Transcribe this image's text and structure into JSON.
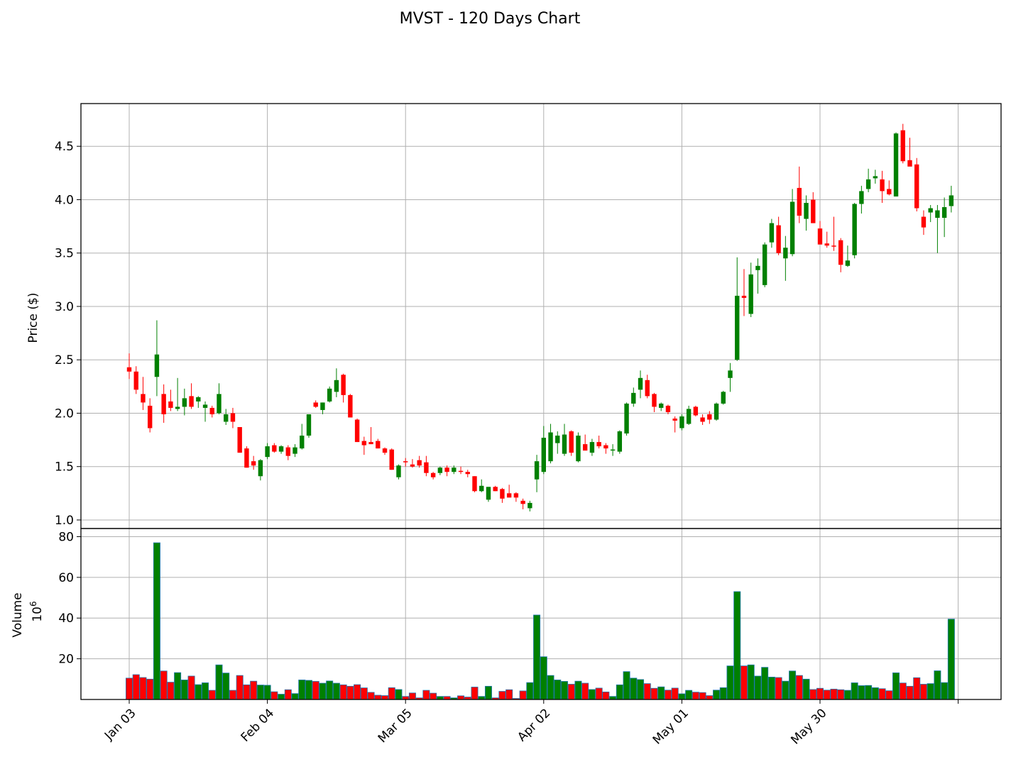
{
  "chart_data": {
    "type": "candlestick",
    "title": "MVST - 120 Days Chart",
    "ylabel_price": "Price ($)",
    "ylabel_volume": "Volume",
    "volume_multiplier": "10",
    "volume_exponent": "6",
    "price_ylim": [
      0.92,
      4.9
    ],
    "price_yticks": [
      "1.0",
      "1.5",
      "2.0",
      "2.5",
      "3.0",
      "3.5",
      "4.0",
      "4.5"
    ],
    "volume_ylim": [
      0,
      84
    ],
    "volume_yticks": [
      "20",
      "40",
      "60",
      "80"
    ],
    "xtick_labels": [
      {
        "label": "Jan 03",
        "index": 0
      },
      {
        "label": "Feb 04",
        "index": 20
      },
      {
        "label": "Mar 05",
        "index": 40
      },
      {
        "label": "Apr 02",
        "index": 60
      },
      {
        "label": "May 01",
        "index": 80
      },
      {
        "label": "May 30",
        "index": 100
      },
      {
        "label": "",
        "index": 120
      }
    ],
    "colors": {
      "up": "#008000",
      "down": "#ff0000",
      "edge": "#1f77b4",
      "grid": "#b0b0b0"
    },
    "candles": [
      [
        2.43,
        2.56,
        2.32,
        2.39,
        10.5
      ],
      [
        2.39,
        2.44,
        2.18,
        2.22,
        12.2
      ],
      [
        2.18,
        2.34,
        2.03,
        2.1,
        10.8
      ],
      [
        2.07,
        2.14,
        1.82,
        1.86,
        10
      ],
      [
        2.34,
        2.87,
        2.16,
        2.55,
        77
      ],
      [
        2.18,
        2.27,
        1.91,
        1.99,
        14
      ],
      [
        2.11,
        2.22,
        2.02,
        2.05,
        8.5
      ],
      [
        2.04,
        2.33,
        2.02,
        2.06,
        13.2
      ],
      [
        2.06,
        2.23,
        1.98,
        2.14,
        9.6
      ],
      [
        2.16,
        2.28,
        2.04,
        2.06,
        11.5
      ],
      [
        2.11,
        2.16,
        2.05,
        2.15,
        7.3
      ],
      [
        2.05,
        2.11,
        1.92,
        2.08,
        8.2
      ],
      [
        2.05,
        2.07,
        1.96,
        1.99,
        4.5
      ],
      [
        2,
        2.28,
        1.99,
        2.18,
        17
      ],
      [
        1.92,
        2.04,
        1.89,
        1.99,
        13
      ],
      [
        2,
        2.05,
        1.86,
        1.92,
        4.5
      ],
      [
        1.87,
        1.87,
        1.63,
        1.63,
        11.8
      ],
      [
        1.67,
        1.69,
        1.49,
        1.49,
        7.2
      ],
      [
        1.55,
        1.6,
        1.47,
        1.51,
        9
      ],
      [
        1.41,
        1.57,
        1.37,
        1.56,
        7.1
      ],
      [
        1.59,
        1.72,
        1.57,
        1.69,
        7
      ],
      [
        1.7,
        1.72,
        1.63,
        1.64,
        3.8
      ],
      [
        1.64,
        1.7,
        1.62,
        1.69,
        2.6
      ],
      [
        1.68,
        1.7,
        1.56,
        1.6,
        4.8
      ],
      [
        1.62,
        1.71,
        1.59,
        1.68,
        2.9
      ],
      [
        1.67,
        1.9,
        1.66,
        1.79,
        9.6
      ],
      [
        1.79,
        1.99,
        1.77,
        1.99,
        9.4
      ],
      [
        2.1,
        2.12,
        2.05,
        2.06,
        8.9
      ],
      [
        2.03,
        2.1,
        1.99,
        2.1,
        8
      ],
      [
        2.11,
        2.25,
        2.1,
        2.23,
        9.1
      ],
      [
        2.2,
        2.42,
        2.15,
        2.31,
        8
      ],
      [
        2.36,
        2.37,
        2.1,
        2.17,
        7.2
      ],
      [
        2.17,
        2.18,
        1.96,
        1.96,
        6.5
      ],
      [
        1.94,
        1.95,
        1.73,
        1.73,
        7.3
      ],
      [
        1.74,
        1.78,
        1.61,
        1.7,
        5.7
      ],
      [
        1.73,
        1.87,
        1.71,
        1.71,
        3.5
      ],
      [
        1.74,
        1.76,
        1.67,
        1.67,
        2.1
      ],
      [
        1.67,
        1.68,
        1.61,
        1.63,
        1.9
      ],
      [
        1.66,
        1.67,
        1.47,
        1.47,
        5.8
      ],
      [
        1.4,
        1.52,
        1.38,
        1.51,
        4.9
      ],
      [
        1.55,
        1.58,
        1.5,
        1.54,
        1.5
      ],
      [
        1.52,
        1.57,
        1.49,
        1.5,
        3.2
      ],
      [
        1.56,
        1.6,
        1.49,
        1.51,
        0.8
      ],
      [
        1.54,
        1.6,
        1.41,
        1.44,
        4.5
      ],
      [
        1.44,
        1.45,
        1.38,
        1.4,
        3.1
      ],
      [
        1.44,
        1.5,
        1.42,
        1.49,
        1.5
      ],
      [
        1.49,
        1.51,
        1.41,
        1.45,
        1.5
      ],
      [
        1.45,
        1.51,
        1.43,
        1.49,
        0.8
      ],
      [
        1.46,
        1.5,
        1.43,
        1.45,
        1.8
      ],
      [
        1.45,
        1.47,
        1.4,
        1.43,
        1.2
      ],
      [
        1.41,
        1.41,
        1.26,
        1.27,
        6.1
      ],
      [
        1.27,
        1.38,
        1.26,
        1.32,
        1.5
      ],
      [
        1.19,
        1.31,
        1.17,
        1.31,
        6.5
      ],
      [
        1.31,
        1.32,
        1.27,
        1.27,
        0.8
      ],
      [
        1.29,
        1.3,
        1.16,
        1.2,
        4
      ],
      [
        1.25,
        1.33,
        1.21,
        1.21,
        4.8
      ],
      [
        1.25,
        1.26,
        1.17,
        1.21,
        0.5
      ],
      [
        1.18,
        1.2,
        1.1,
        1.15,
        4.2
      ],
      [
        1.11,
        1.18,
        1.08,
        1.16,
        8.3
      ],
      [
        1.38,
        1.61,
        1.26,
        1.55,
        41.5
      ],
      [
        1.45,
        1.88,
        1.43,
        1.77,
        21
      ],
      [
        1.55,
        1.9,
        1.53,
        1.82,
        11.8
      ],
      [
        1.72,
        1.83,
        1.62,
        1.79,
        9.6
      ],
      [
        1.62,
        1.9,
        1.6,
        1.8,
        8.9
      ],
      [
        1.83,
        1.84,
        1.6,
        1.63,
        7.5
      ],
      [
        1.55,
        1.82,
        1.54,
        1.79,
        9
      ],
      [
        1.71,
        1.8,
        1.65,
        1.65,
        8
      ],
      [
        1.63,
        1.76,
        1.6,
        1.73,
        4.9
      ],
      [
        1.73,
        1.79,
        1.67,
        1.69,
        5.6
      ],
      [
        1.7,
        1.72,
        1.62,
        1.67,
        3.7
      ],
      [
        1.66,
        1.71,
        1.6,
        1.66,
        1.5
      ],
      [
        1.64,
        1.84,
        1.62,
        1.83,
        7.2
      ],
      [
        1.81,
        2.1,
        1.79,
        2.09,
        13.7
      ],
      [
        2.09,
        2.24,
        2.06,
        2.19,
        10.5
      ],
      [
        2.22,
        2.4,
        2.14,
        2.33,
        9.8
      ],
      [
        2.31,
        2.36,
        2.14,
        2.16,
        7.8
      ],
      [
        2.18,
        2.19,
        2.01,
        2.06,
        5.5
      ],
      [
        2.05,
        2.1,
        2.02,
        2.09,
        6.2
      ],
      [
        2.07,
        2.08,
        1.99,
        2.01,
        4.6
      ],
      [
        1.95,
        1.97,
        1.82,
        1.93,
        5.6
      ],
      [
        1.86,
        1.99,
        1.84,
        1.97,
        2.8
      ],
      [
        1.9,
        2.07,
        1.89,
        2.04,
        4.5
      ],
      [
        2.06,
        2.07,
        1.97,
        1.98,
        3.6
      ],
      [
        1.96,
        1.99,
        1.89,
        1.92,
        3.4
      ],
      [
        1.99,
        2.02,
        1.9,
        1.94,
        1.9
      ],
      [
        1.94,
        2.1,
        1.93,
        2.09,
        4.6
      ],
      [
        2.09,
        2.21,
        2.08,
        2.2,
        5.8
      ],
      [
        2.33,
        2.47,
        2.2,
        2.4,
        16.5
      ],
      [
        2.5,
        3.46,
        2.49,
        3.1,
        53
      ],
      [
        3.1,
        3.35,
        2.91,
        3.08,
        16.5
      ],
      [
        2.93,
        3.41,
        2.9,
        3.3,
        17
      ],
      [
        3.34,
        3.45,
        3.12,
        3.38,
        11.5
      ],
      [
        3.2,
        3.6,
        3.18,
        3.58,
        15.8
      ],
      [
        3.6,
        3.82,
        3.55,
        3.78,
        11
      ],
      [
        3.76,
        3.84,
        3.48,
        3.5,
        10.8
      ],
      [
        3.45,
        3.66,
        3.24,
        3.55,
        9
      ],
      [
        3.49,
        4.1,
        3.47,
        3.98,
        14
      ],
      [
        4.11,
        4.31,
        3.78,
        3.85,
        11.8
      ],
      [
        3.82,
        4.04,
        3.71,
        3.97,
        10
      ],
      [
        4,
        4.07,
        3.78,
        3.78,
        4.9
      ],
      [
        3.73,
        3.8,
        3.58,
        3.58,
        5.5
      ],
      [
        3.59,
        3.7,
        3.55,
        3.57,
        4.6
      ],
      [
        3.57,
        3.84,
        3.52,
        3.56,
        5.1
      ],
      [
        3.62,
        3.64,
        3.32,
        3.39,
        4.8
      ],
      [
        3.38,
        3.57,
        3.37,
        3.43,
        4.5
      ],
      [
        3.48,
        3.97,
        3.45,
        3.96,
        8.2
      ],
      [
        3.96,
        4.13,
        3.87,
        4.08,
        6.8
      ],
      [
        4.1,
        4.29,
        4.07,
        4.19,
        6.9
      ],
      [
        4.2,
        4.28,
        4.15,
        4.22,
        5.8
      ],
      [
        4.19,
        4.27,
        3.97,
        4.08,
        5.3
      ],
      [
        4.1,
        4.18,
        4.04,
        4.05,
        4.3
      ],
      [
        4.03,
        4.63,
        4.03,
        4.62,
        13.1
      ],
      [
        4.65,
        4.71,
        4.34,
        4.36,
        8.1
      ],
      [
        4.37,
        4.58,
        4.32,
        4.31,
        6.5
      ],
      [
        4.33,
        4.39,
        3.89,
        3.92,
        10.7
      ],
      [
        3.84,
        3.9,
        3.67,
        3.74,
        7.5
      ],
      [
        3.88,
        3.95,
        3.79,
        3.92,
        7.8
      ],
      [
        3.83,
        3.95,
        3.5,
        3.9,
        14.1
      ],
      [
        3.83,
        4.02,
        3.65,
        3.93,
        8.3
      ],
      [
        3.94,
        4.13,
        3.88,
        4.04,
        39.5
      ]
    ]
  }
}
